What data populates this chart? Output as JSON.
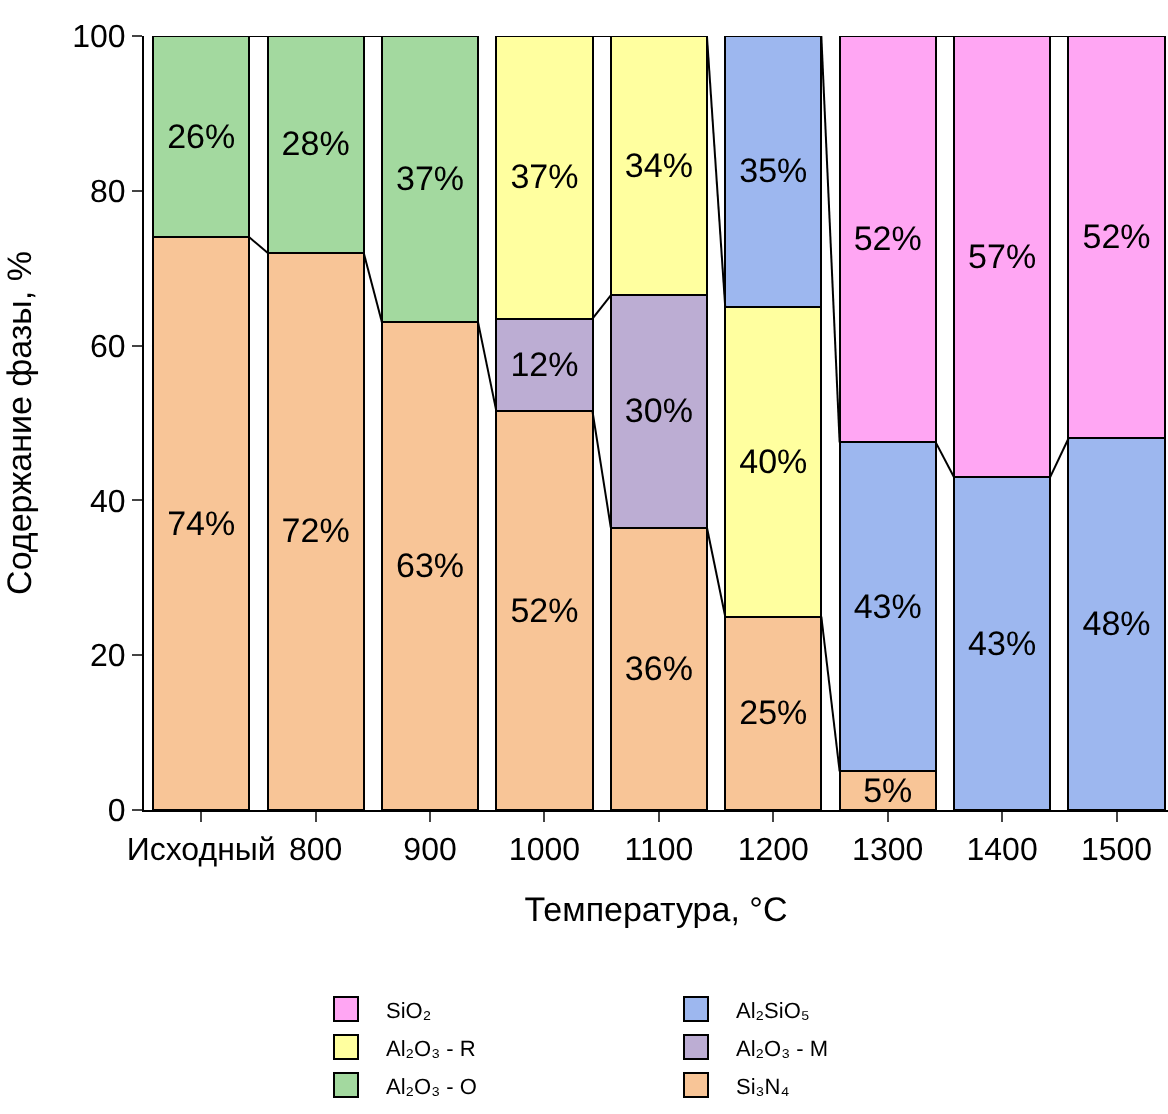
{
  "chart_data": {
    "type": "bar",
    "stacked": true,
    "xlabel": "Температура, °C",
    "ylabel": "Содержание фазы, %",
    "categories": [
      "Исходный",
      "800",
      "900",
      "1000",
      "1100",
      "1200",
      "1300",
      "1400",
      "1500"
    ],
    "series": [
      {
        "name": "Si₃N₄",
        "color": "#f8c597",
        "values": [
          74,
          72,
          63,
          51.5,
          36.5,
          25,
          5,
          null,
          null
        ],
        "value_labels": [
          "74%",
          "72%",
          "63%",
          "52%",
          "36%",
          "25%",
          "5%",
          null,
          null
        ]
      },
      {
        "name": "Al₂O₃ - O",
        "color": "#a3d99f",
        "values": [
          26,
          28,
          37,
          null,
          null,
          null,
          null,
          null,
          null
        ],
        "value_labels": [
          "26%",
          "28%",
          "37%",
          null,
          null,
          null,
          null,
          null,
          null
        ]
      },
      {
        "name": "Al₂O₃ - M",
        "color": "#bcadd3",
        "values": [
          null,
          null,
          null,
          12,
          30,
          null,
          null,
          null,
          null
        ],
        "value_labels": [
          null,
          null,
          null,
          "12%",
          "30%",
          null,
          null,
          null,
          null
        ]
      },
      {
        "name": "Al₂O₃ - R",
        "color": "#ffff9f",
        "values": [
          null,
          null,
          null,
          36.5,
          33.5,
          40,
          null,
          null,
          null
        ],
        "value_labels": [
          null,
          null,
          null,
          "37%",
          "34%",
          "40%",
          null,
          null,
          null
        ]
      },
      {
        "name": "Al₂SiO₅",
        "color": "#9db7ef",
        "values": [
          null,
          null,
          null,
          null,
          null,
          35,
          42.5,
          43,
          48
        ],
        "value_labels": [
          null,
          null,
          null,
          null,
          null,
          "35%",
          "43%",
          "43%",
          "48%"
        ]
      },
      {
        "name": "SiO₂",
        "color": "#ffa6f3",
        "values": [
          null,
          null,
          null,
          null,
          null,
          null,
          52.5,
          57,
          52
        ],
        "value_labels": [
          null,
          null,
          null,
          null,
          null,
          null,
          "52%",
          "57%",
          "52%"
        ]
      }
    ],
    "ylim": [
      0,
      100
    ],
    "yticks": [
      0,
      20,
      40,
      60,
      80,
      100
    ],
    "legend": "bottom"
  }
}
